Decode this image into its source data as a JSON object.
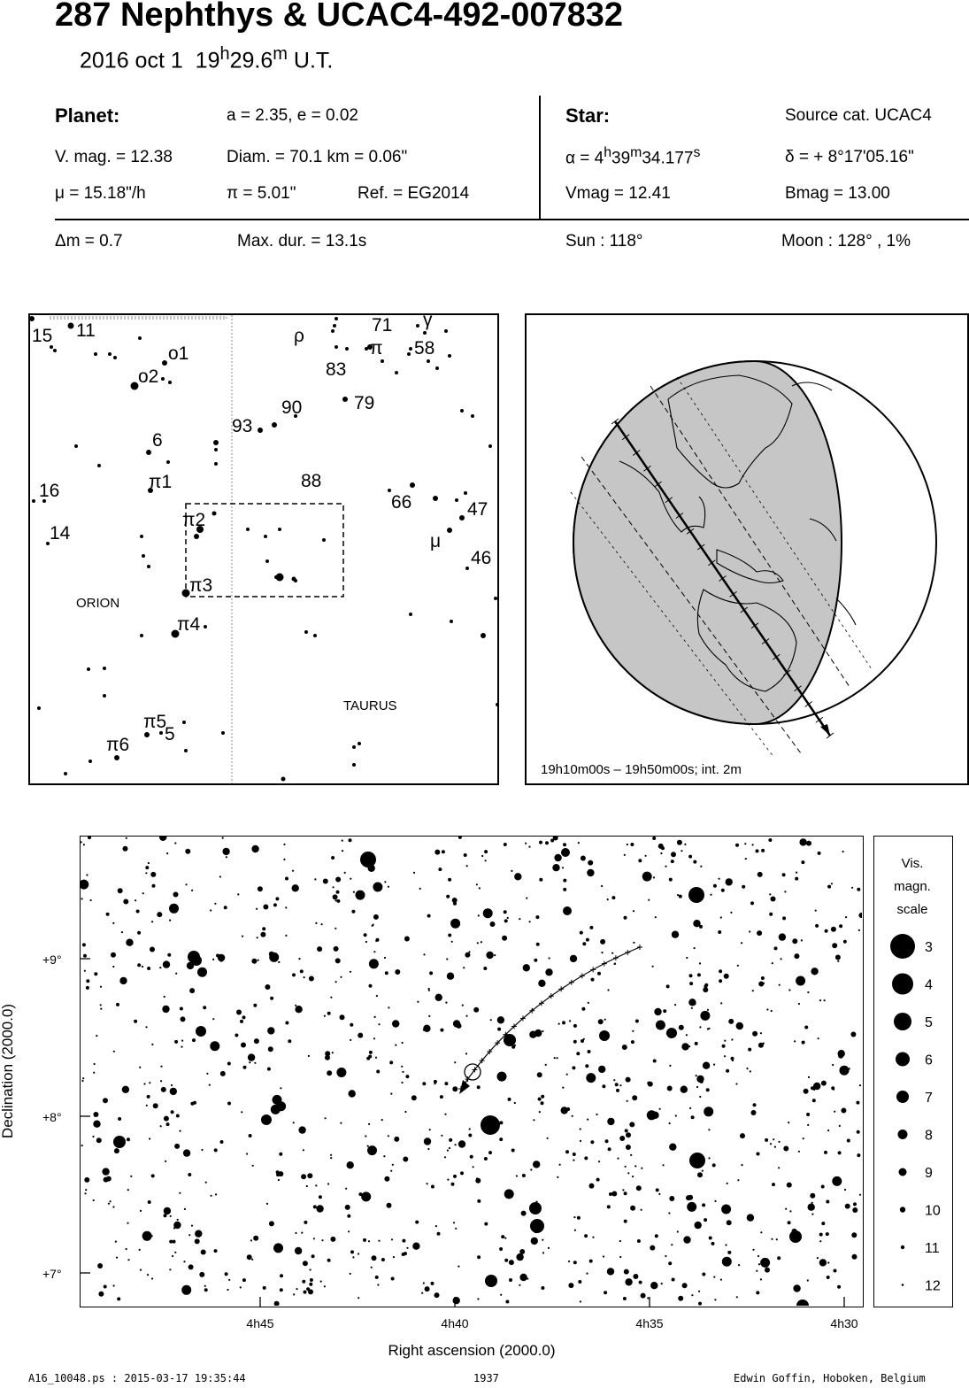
{
  "header": {
    "title": "287 Nephthys  &  UCAC4-492-007832",
    "date": "2016 oct  1",
    "time_h": "19",
    "time_m": "29.6",
    "time_suffix": "U.T."
  },
  "planet": {
    "heading": "Planet:",
    "orbit": "a = 2.35, e = 0.02",
    "vmag": "V. mag. = 12.38",
    "diam": "Diam. = 70.1 km = 0.06\"",
    "mu": "μ =  15.18\"/h",
    "pi": "π =  5.01\"",
    "ref": "Ref. = EG2014"
  },
  "star": {
    "heading": "Star:",
    "source": "Source cat.  UCAC4",
    "alpha_prefix": "α =  4",
    "alpha_h": "h",
    "alpha_mid": "39",
    "alpha_m": "m",
    "alpha_sec": "34.177",
    "alpha_s": "s",
    "delta": "δ = + 8°17'05.16\"",
    "vmag": "Vmag = 12.41",
    "bmag": "Bmag = 13.00"
  },
  "event": {
    "dm": "Δm = 0.7",
    "maxdur": "Max. dur. = 13.1s",
    "sun": "Sun : 118°",
    "moon": "Moon : 128° ,  1%"
  },
  "finder": {
    "star_labels": [
      "15",
      "11",
      "o2",
      "o1",
      "6",
      "16",
      "14",
      "π1",
      "π2",
      "π3",
      "π4",
      "π5",
      "π6",
      "5",
      "93",
      "90",
      "83",
      "79",
      "88",
      "71",
      "58",
      "66",
      "47",
      "46",
      "ρ",
      "π",
      "γ",
      "μ"
    ],
    "constellations": [
      "ORION",
      "TAURUS"
    ]
  },
  "globe": {
    "caption": "19h10m00s – 19h50m00s; int.  2m"
  },
  "chart_data": {
    "type": "scatter",
    "xlabel": "Right ascension (2000.0)",
    "ylabel": "Declination (2000.0)",
    "x_ticks": [
      "4h45",
      "4h40",
      "4h35",
      "4h30"
    ],
    "y_ticks": [
      "+9°",
      "+8°",
      "+7°"
    ],
    "target_star": {
      "ra": "4h39m34.177s",
      "dec": "+8°17'05.16\""
    },
    "magnitude_scale_title": [
      "Vis.",
      "magn.",
      "scale"
    ],
    "magnitude_scale": [
      "3",
      "4",
      "5",
      "6",
      "7",
      "8",
      "9",
      "10",
      "11",
      "12"
    ]
  },
  "footer": {
    "left": "A16_10048.ps : 2015-03-17 19:35:44",
    "center": "1937",
    "right": "Edwin Goffin, Hoboken, Belgium"
  }
}
